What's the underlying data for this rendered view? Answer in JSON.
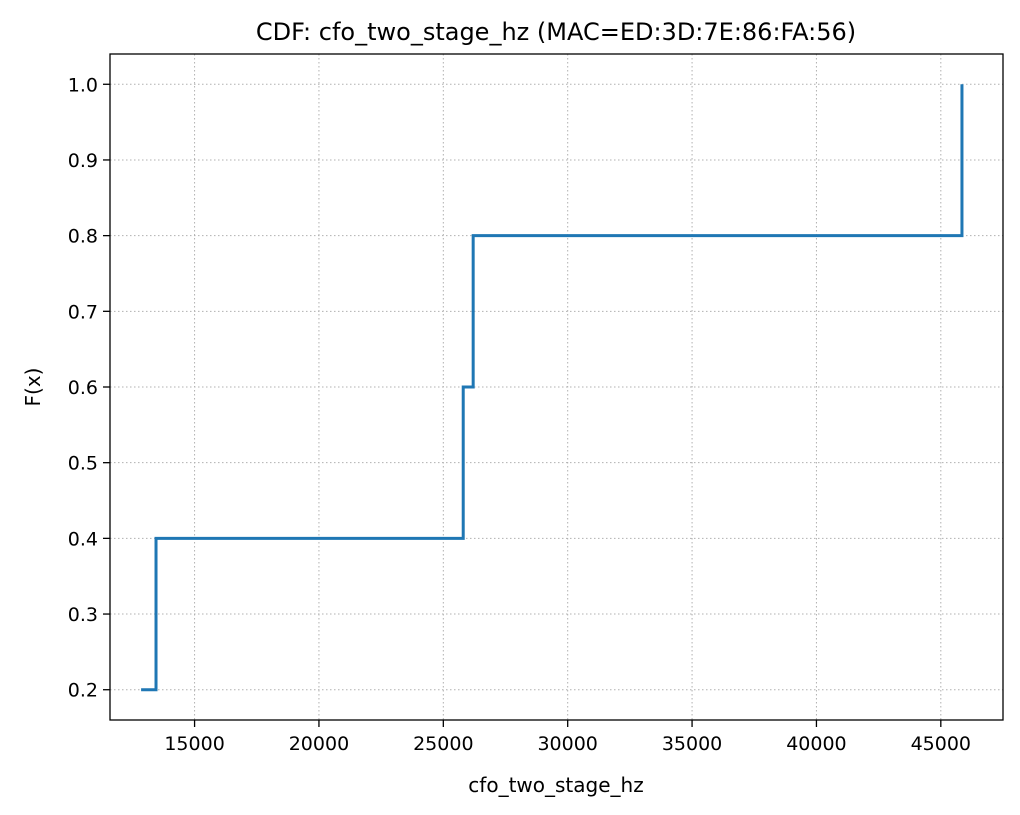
{
  "chart_data": {
    "type": "line",
    "title": "CDF: cfo_two_stage_hz (MAC=ED:3D:7E:86:FA:56)",
    "xlabel": "cfo_two_stage_hz",
    "ylabel": "F(x)",
    "xlim": [
      11600,
      47500
    ],
    "ylim": [
      0.16,
      1.04
    ],
    "xticks": [
      15000,
      20000,
      25000,
      30000,
      35000,
      40000,
      45000
    ],
    "yticks": [
      0.2,
      0.3,
      0.4,
      0.5,
      0.6,
      0.7,
      0.8,
      0.9,
      1.0
    ],
    "xtick_labels": [
      "15000",
      "20000",
      "25000",
      "30000",
      "35000",
      "40000",
      "45000"
    ],
    "ytick_labels": [
      "0.2",
      "0.3",
      "0.4",
      "0.5",
      "0.6",
      "0.7",
      "0.8",
      "0.9",
      "1.0"
    ],
    "grid": true,
    "step": "post",
    "series": [
      {
        "color": "#1f77b4",
        "x": [
          12850,
          13450,
          25800,
          26200,
          45850
        ],
        "y": [
          0.2,
          0.4,
          0.6,
          0.8,
          1.0
        ]
      }
    ]
  }
}
